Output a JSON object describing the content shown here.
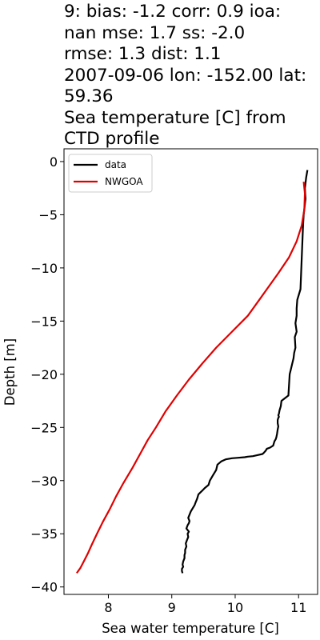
{
  "title_lines": [
    "9: bias: -1.2  corr: 0.9  ioa:",
    "nan  mse: 1.7  ss: -2.0",
    "rmse: 1.3  dist: 1.1",
    "2007-09-06 lon: -152.00 lat:",
    "59.36",
    "Sea temperature [C] from",
    "CTD profile"
  ],
  "chart_data": {
    "type": "line",
    "title": "9: bias: -1.2  corr: 0.9  ioa: nan  mse: 1.7  ss: -2.0 rmse: 1.3  dist: 1.1 2007-09-06 lon: -152.00 lat: 59.36 Sea temperature [C] from CTD profile",
    "xlabel": "Sea water temperature [C]",
    "ylabel": "Depth [m]",
    "xlim": [
      7.3,
      11.3
    ],
    "ylim": [
      -40.7,
      1.2
    ],
    "xticks": [
      8,
      9,
      10,
      11
    ],
    "yticks": [
      0,
      -5,
      -10,
      -15,
      -20,
      -25,
      -30,
      -35,
      -40
    ],
    "xtick_labels": [
      "8",
      "9",
      "10",
      "11"
    ],
    "ytick_labels": [
      "0",
      "−5",
      "−10",
      "−15",
      "−20",
      "−25",
      "−30",
      "−35",
      "−40"
    ],
    "grid": false,
    "legend_position": "top-left",
    "series": [
      {
        "name": "data",
        "color": "#000000",
        "x": [
          11.14,
          11.12,
          11.1,
          11.11,
          11.08,
          11.07,
          11.06,
          11.05,
          11.04,
          11.03,
          10.98,
          10.97,
          10.97,
          10.95,
          10.97,
          10.94,
          10.95,
          10.93,
          10.92,
          10.9,
          10.88,
          10.86,
          10.85,
          10.84,
          10.73,
          10.72,
          10.7,
          10.69,
          10.68,
          10.69,
          10.68,
          10.67,
          10.67,
          10.68,
          10.67,
          10.66,
          10.65,
          10.64,
          10.62,
          10.61,
          10.6,
          10.55,
          10.5,
          10.48,
          10.45,
          10.43,
          10.35,
          10.28,
          10.2,
          10.15,
          10.05,
          9.95,
          9.85,
          9.78,
          9.72,
          9.7,
          9.65,
          9.6,
          9.58,
          9.52,
          9.47,
          9.42,
          9.4,
          9.38,
          9.36,
          9.33,
          9.3,
          9.28,
          9.26,
          9.28,
          9.27,
          9.25,
          9.23,
          9.27,
          9.25,
          9.26,
          9.24,
          9.22,
          9.23,
          9.21,
          9.21,
          9.2,
          9.2,
          9.18,
          9.17,
          9.18,
          9.16,
          9.16,
          9.17
        ],
        "y": [
          -0.8,
          -1.5,
          -2.5,
          -3.5,
          -5.0,
          -6.0,
          -7.5,
          -9.0,
          -10.5,
          -12.0,
          -13.0,
          -13.8,
          -14.5,
          -15.2,
          -16.0,
          -16.5,
          -17.5,
          -18.0,
          -18.5,
          -19.0,
          -19.5,
          -20.0,
          -21.0,
          -22.0,
          -22.5,
          -23.0,
          -23.4,
          -23.7,
          -23.85,
          -24.0,
          -24.1,
          -24.3,
          -24.6,
          -24.9,
          -25.2,
          -25.6,
          -25.9,
          -26.1,
          -26.3,
          -26.5,
          -26.7,
          -26.9,
          -27.0,
          -27.2,
          -27.4,
          -27.5,
          -27.6,
          -27.7,
          -27.75,
          -27.8,
          -27.85,
          -27.9,
          -28.0,
          -28.2,
          -28.5,
          -29.0,
          -29.5,
          -30.0,
          -30.4,
          -30.7,
          -31.0,
          -31.3,
          -31.7,
          -32.0,
          -32.3,
          -32.6,
          -32.9,
          -33.2,
          -33.5,
          -33.8,
          -34.0,
          -34.2,
          -34.5,
          -34.8,
          -35.0,
          -35.3,
          -35.6,
          -35.9,
          -36.2,
          -36.5,
          -36.8,
          -37.0,
          -37.3,
          -37.6,
          -37.9,
          -38.1,
          -38.3,
          -38.5,
          -38.7
        ]
      },
      {
        "name": "NWGOA",
        "color": "#e00000",
        "x": [
          11.08,
          11.1,
          11.09,
          11.05,
          10.97,
          10.85,
          10.68,
          10.5,
          10.38,
          10.2,
          9.95,
          9.7,
          9.48,
          9.27,
          9.08,
          8.9,
          8.75,
          8.62,
          8.5,
          8.38,
          8.24,
          8.12,
          8.02,
          7.92,
          7.82,
          7.74,
          7.68,
          7.62,
          7.56,
          7.5
        ],
        "y": [
          -1.9,
          -3.0,
          -4.5,
          -6.0,
          -7.5,
          -9.0,
          -10.5,
          -12.0,
          -13.0,
          -14.5,
          -16.0,
          -17.5,
          -19.0,
          -20.5,
          -22.0,
          -23.5,
          -25.0,
          -26.2,
          -27.5,
          -28.8,
          -30.2,
          -31.5,
          -32.7,
          -33.8,
          -35.0,
          -36.0,
          -36.8,
          -37.5,
          -38.2,
          -38.7
        ]
      }
    ]
  }
}
